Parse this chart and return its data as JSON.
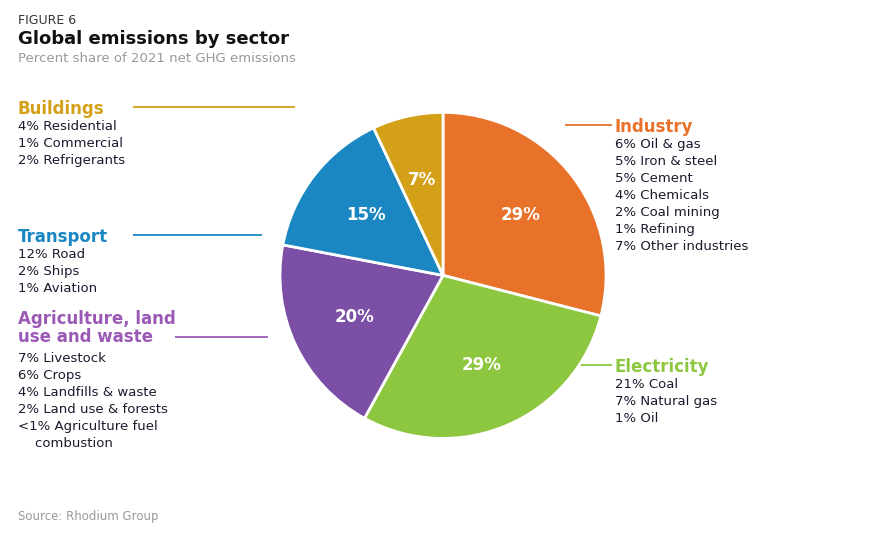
{
  "figure_label": "FIGURE 6",
  "title": "Global emissions by sector",
  "subtitle": "Percent share of 2021 net GHG emissions",
  "source": "Source: Rhodium Group",
  "values": [
    29,
    29,
    20,
    15,
    7
  ],
  "colors": [
    "#E8722A",
    "#8DC63F",
    "#7B4FA6",
    "#1B87C2",
    "#D4A017"
  ],
  "pct_labels": [
    "29%",
    "29%",
    "20%",
    "15%",
    "7%"
  ],
  "industry_color": "#E8722A",
  "electricity_color": "#8DC63F",
  "agriculture_color": "#9B59B6",
  "transport_color": "#1B87C2",
  "buildings_color": "#D4A017",
  "detail_color": "#1a1a2e",
  "industry_details": [
    "6% Oil & gas",
    "5% Iron & steel",
    "5% Cement",
    "4% Chemicals",
    "2% Coal mining",
    "1% Refining",
    "7% Other industries"
  ],
  "electricity_details": [
    "21% Coal",
    "7% Natural gas",
    "1% Oil"
  ],
  "agriculture_details": [
    "7% Livestock",
    "6% Crops",
    "4% Landfills & waste",
    "2% Land use & forests",
    "<1% Agriculture fuel",
    "    combustion"
  ],
  "transport_details": [
    "12% Road",
    "2% Ships",
    "1% Aviation"
  ],
  "buildings_details": [
    "4% Residential",
    "1% Commercial",
    "2% Refrigerants"
  ],
  "background_color": "#FFFFFF",
  "gray_color": "#999999"
}
